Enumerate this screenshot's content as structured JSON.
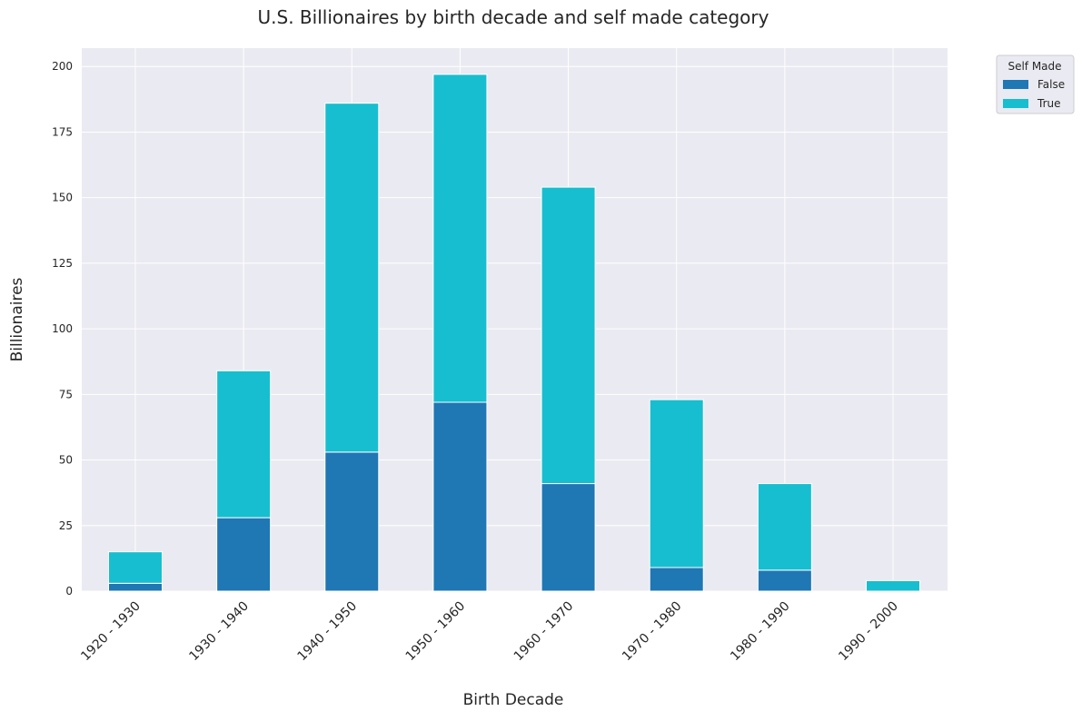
{
  "chart_data": {
    "type": "bar",
    "stacked": true,
    "title": "U.S. Billionaires by birth decade and self made category",
    "xlabel": "Birth Decade",
    "ylabel": "Billionaires",
    "categories": [
      "1920 - 1930",
      "1930 - 1940",
      "1940 - 1950",
      "1950 - 1960",
      "1960 - 1970",
      "1970 - 1980",
      "1980 - 1990",
      "1990 - 2000"
    ],
    "series": [
      {
        "name": "False",
        "color": "#1f77b4",
        "values": [
          3,
          28,
          53,
          72,
          41,
          9,
          8,
          0
        ]
      },
      {
        "name": "True",
        "color": "#17becf",
        "values": [
          12,
          56,
          133,
          125,
          113,
          64,
          33,
          4
        ]
      }
    ],
    "ylim": [
      0,
      207
    ],
    "yticks": [
      0,
      25,
      50,
      75,
      100,
      125,
      150,
      175,
      200
    ],
    "grid": true,
    "legend": {
      "title": "Self Made",
      "placement": "outside-top-right"
    }
  }
}
